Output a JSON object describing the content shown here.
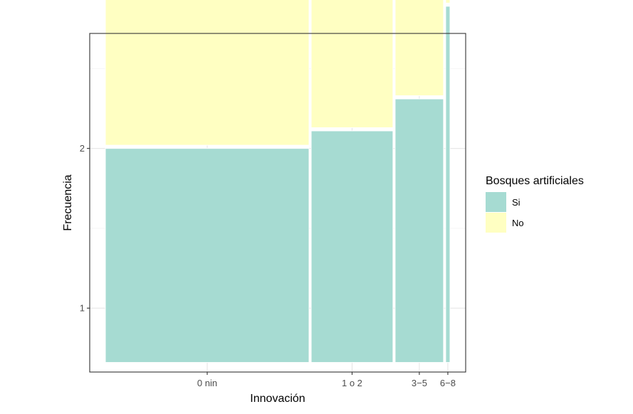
{
  "chart_data": {
    "type": "mosaic",
    "xlabel": "Innovación",
    "ylabel": "Frecuencia",
    "categories": [
      "0 nin",
      "1 o 2",
      "3−5",
      "6−8"
    ],
    "category_widths": [
      0.61,
      0.245,
      0.145,
      0.013
    ],
    "series": [
      {
        "name": "Si",
        "color": "#a6dbd2",
        "values": [
          1.34,
          1.45,
          1.65,
          2.23
        ]
      },
      {
        "name": "No",
        "color": "#ffffc2",
        "values": [
          1.3,
          1.19,
          0.99,
          0.41
        ]
      }
    ],
    "ylim": [
      0.6,
      2.72
    ],
    "yticks": [
      1,
      2
    ],
    "y_tick_labels": [
      "1",
      "2"
    ],
    "y_base": 0.66,
    "legend": {
      "title": "Bosques artificiales",
      "position": "right",
      "items": [
        {
          "label": "Si",
          "color": "#a6dbd2"
        },
        {
          "label": "No",
          "color": "#ffffc2"
        }
      ]
    },
    "grid": true,
    "theme": "bw"
  }
}
